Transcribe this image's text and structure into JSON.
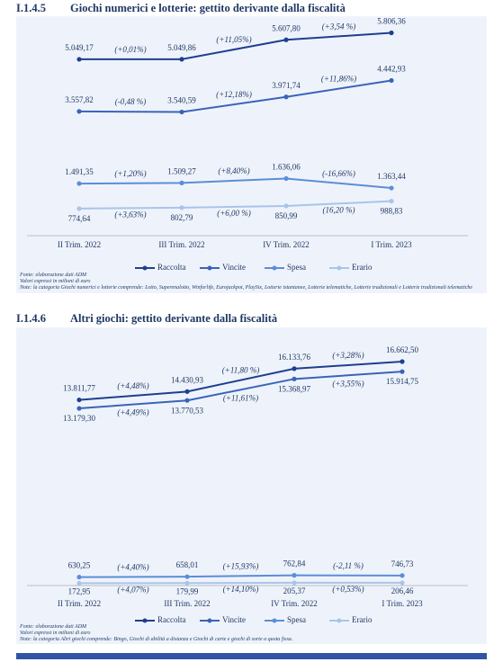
{
  "sections": [
    {
      "number": "I.1.4.5",
      "heading": "Giochi numerici e lotterie: gettito derivante dalla fiscalità",
      "chart_data": {
        "type": "line",
        "categories": [
          "II Trim. 2022",
          "III Trim. 2022",
          "IV Trim. 2022",
          "I Trim. 2023"
        ],
        "ylim": [
          0,
          6000
        ],
        "series": [
          {
            "name": "Raccolta",
            "color": "#1f3f8f",
            "values": [
              5049.17,
              5049.86,
              5607.8,
              5806.36
            ],
            "value_labels": [
              "5.049,17",
              "5.049,86",
              "5.607,80",
              "5.806,36"
            ],
            "changes": [
              "(+0,01%)",
              "(+11,05%)",
              "(+3,54 %)"
            ]
          },
          {
            "name": "Vincite",
            "color": "#3a64b8",
            "values": [
              3557.82,
              3540.59,
              3971.74,
              4442.93
            ],
            "value_labels": [
              "3.557,82",
              "3.540,59",
              "3.971,74",
              "4.442,93"
            ],
            "changes": [
              "(-0,48 %)",
              "(+12,18%)",
              "(+11,86%)"
            ]
          },
          {
            "name": "Spesa",
            "color": "#5b8ed6",
            "values": [
              1491.35,
              1509.27,
              1636.06,
              1363.44
            ],
            "value_labels": [
              "1.491,35",
              "1.509,27",
              "1.636,06",
              "1.363,44"
            ],
            "changes": [
              "(+1,20%)",
              "(+8,40%)",
              "(-16,66%)"
            ]
          },
          {
            "name": "Erario",
            "color": "#a9c4ea",
            "values": [
              774.64,
              802.79,
              850.99,
              988.83
            ],
            "value_labels": [
              "774,64",
              "802,79",
              "850,99",
              "988,83"
            ],
            "changes": [
              "(+3,63%)",
              "(+6,00 %)",
              "(16,20 %)"
            ]
          }
        ]
      },
      "notes": [
        "Fonte: elaborazione dati ADM",
        "Valori espressi in milioni di euro",
        "Note: la categoria Giochi numerici e lotterie comprende: Lotto, Superenalotto, Winforlife, Eurojackpot, PlaySix, Lotterie istantanee, Lotterie telematiche, Lotterie tradizionali e Lotterie tradizionali telematiche"
      ]
    },
    {
      "number": "I.1.4.6",
      "heading": "Altri giochi: gettito derivante dalla fiscalità",
      "chart_data": {
        "type": "line",
        "categories": [
          "II Trim. 2022",
          "III Trim. 2022",
          "IV Trim. 2022",
          "I Trim. 2023"
        ],
        "ylim": [
          0,
          18000
        ],
        "series": [
          {
            "name": "Raccolta",
            "color": "#1f3f8f",
            "values": [
              13811.77,
              14430.93,
              16133.76,
              16662.5
            ],
            "value_labels": [
              "13.811,77",
              "14.430,93",
              "16.133,76",
              "16.662,50"
            ],
            "changes": [
              "(+4,48%)",
              "(+11,80 %)",
              "(+3,28%)"
            ]
          },
          {
            "name": "Vincite",
            "color": "#3a64b8",
            "values": [
              13179.3,
              13770.53,
              15368.97,
              15914.75
            ],
            "value_labels": [
              "13.179,30",
              "13.770,53",
              "15.368,97",
              "15.914,75"
            ],
            "changes": [
              "(+4,49%)",
              "(+11,61%)",
              "(+3,55%)"
            ]
          },
          {
            "name": "Spesa",
            "color": "#5b8ed6",
            "values": [
              630.25,
              658.01,
              762.84,
              746.73
            ],
            "value_labels": [
              "630,25",
              "658,01",
              "762,84",
              "746,73"
            ],
            "changes": [
              "(+4,40%)",
              "(+15,93%)",
              "(-2,11 %)"
            ]
          },
          {
            "name": "Erario",
            "color": "#a9c4ea",
            "values": [
              172.95,
              179.99,
              205.37,
              206.46
            ],
            "value_labels": [
              "172,95",
              "179,99",
              "205,37",
              "206,46"
            ],
            "changes": [
              "(+4,07%)",
              "(+14,10%)",
              "(+0,53%)"
            ]
          }
        ]
      },
      "notes": [
        "Fonte: elaborazione dati ADM",
        "Valori espressi in milioni di euro",
        "Note: la categoria Altri giochi comprende: Bingo, Giochi di abilità a distanza e Giochi di carte e giochi di sorte a quota fissa."
      ]
    }
  ]
}
